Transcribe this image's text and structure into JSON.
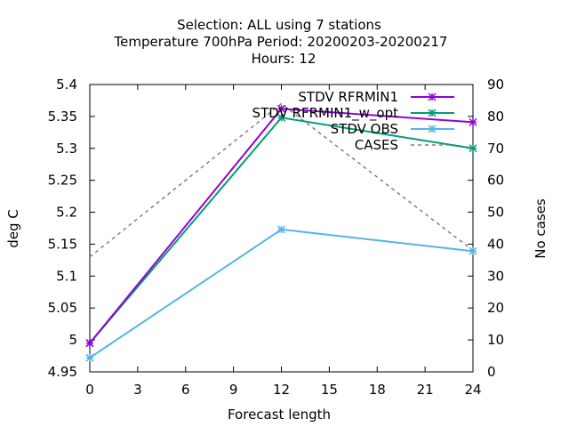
{
  "chart_data": {
    "type": "line",
    "title_lines": [
      "Selection: ALL using     7 stations",
      "Temperature 700hPa    Period: 20200203-20200217",
      "Hours:  12"
    ],
    "xlabel": "Forecast length",
    "ylabel": "deg C",
    "y2label": "No cases",
    "xlim": [
      0,
      24
    ],
    "ylim": [
      4.95,
      5.4
    ],
    "y2lim": [
      0,
      90
    ],
    "xticks": [
      0,
      3,
      6,
      9,
      12,
      15,
      18,
      21,
      24
    ],
    "yticks": [
      4.95,
      5,
      5.05,
      5.1,
      5.15,
      5.2,
      5.25,
      5.3,
      5.35,
      5.4
    ],
    "ytick_labels": [
      "4.95",
      "5",
      "5.05",
      "5.1",
      "5.15",
      "5.2",
      "5.25",
      "5.3",
      "5.35",
      "5.4"
    ],
    "y2ticks": [
      0,
      10,
      20,
      30,
      40,
      50,
      60,
      70,
      80,
      90
    ],
    "grid": false,
    "legend_position": "top-right",
    "series": [
      {
        "name": "STDV RFRMIN1",
        "x": [
          0,
          12,
          24
        ],
        "values": [
          4.995,
          5.362,
          5.341
        ],
        "color": "#9400d3",
        "axis": "y",
        "style": "solid",
        "marker": "x"
      },
      {
        "name": "STDV RFRMIN1_w_opt",
        "x": [
          0,
          12,
          24
        ],
        "values": [
          4.995,
          5.348,
          5.3
        ],
        "color": "#009e73",
        "axis": "y",
        "style": "solid",
        "marker": "x"
      },
      {
        "name": "STDV OBS",
        "x": [
          0,
          12,
          24
        ],
        "values": [
          4.972,
          5.173,
          5.139
        ],
        "color": "#56b4e9",
        "axis": "y",
        "style": "solid",
        "marker": "x"
      },
      {
        "name": "CASES",
        "x": [
          0,
          12,
          24
        ],
        "values": [
          36,
          84,
          38
        ],
        "color": "#808080",
        "axis": "y2",
        "style": "dashed",
        "marker": "none"
      }
    ]
  }
}
